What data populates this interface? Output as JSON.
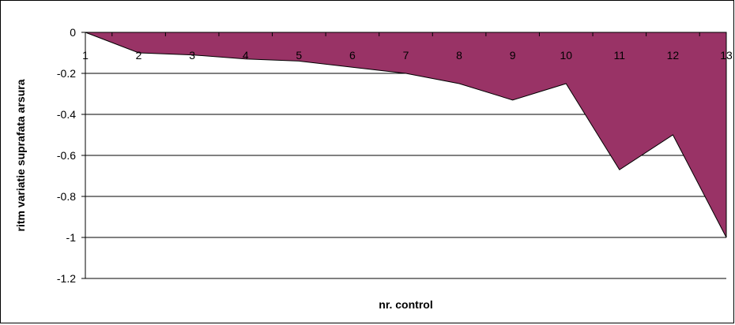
{
  "chart_data": {
    "type": "area",
    "xlabel": "nr. control",
    "ylabel": "ritm variatie suprafata arsura",
    "ylim": [
      -1.2,
      0
    ],
    "yticks": [
      0,
      -0.2,
      -0.4,
      -0.6,
      -0.8,
      -1,
      -1.2
    ],
    "ytick_labels": [
      "0",
      "-0.2",
      "-0.4",
      "-0.6",
      "-0.8",
      "-1",
      "-1.2"
    ],
    "x": [
      1,
      2,
      3,
      4,
      5,
      6,
      7,
      8,
      9,
      10,
      11,
      12,
      13
    ],
    "x_labels": [
      "1",
      "2",
      "3",
      "4",
      "5",
      "6",
      "7",
      "8",
      "9",
      "10",
      "11",
      "12",
      "13"
    ],
    "series": [
      {
        "values": [
          0,
          -0.1,
          -0.11,
          -0.13,
          -0.14,
          -0.17,
          -0.2,
          -0.25,
          -0.33,
          -0.25,
          -0.67,
          -0.5,
          -1.0
        ],
        "color": "#993366"
      }
    ],
    "grid": true,
    "legend": "none"
  }
}
